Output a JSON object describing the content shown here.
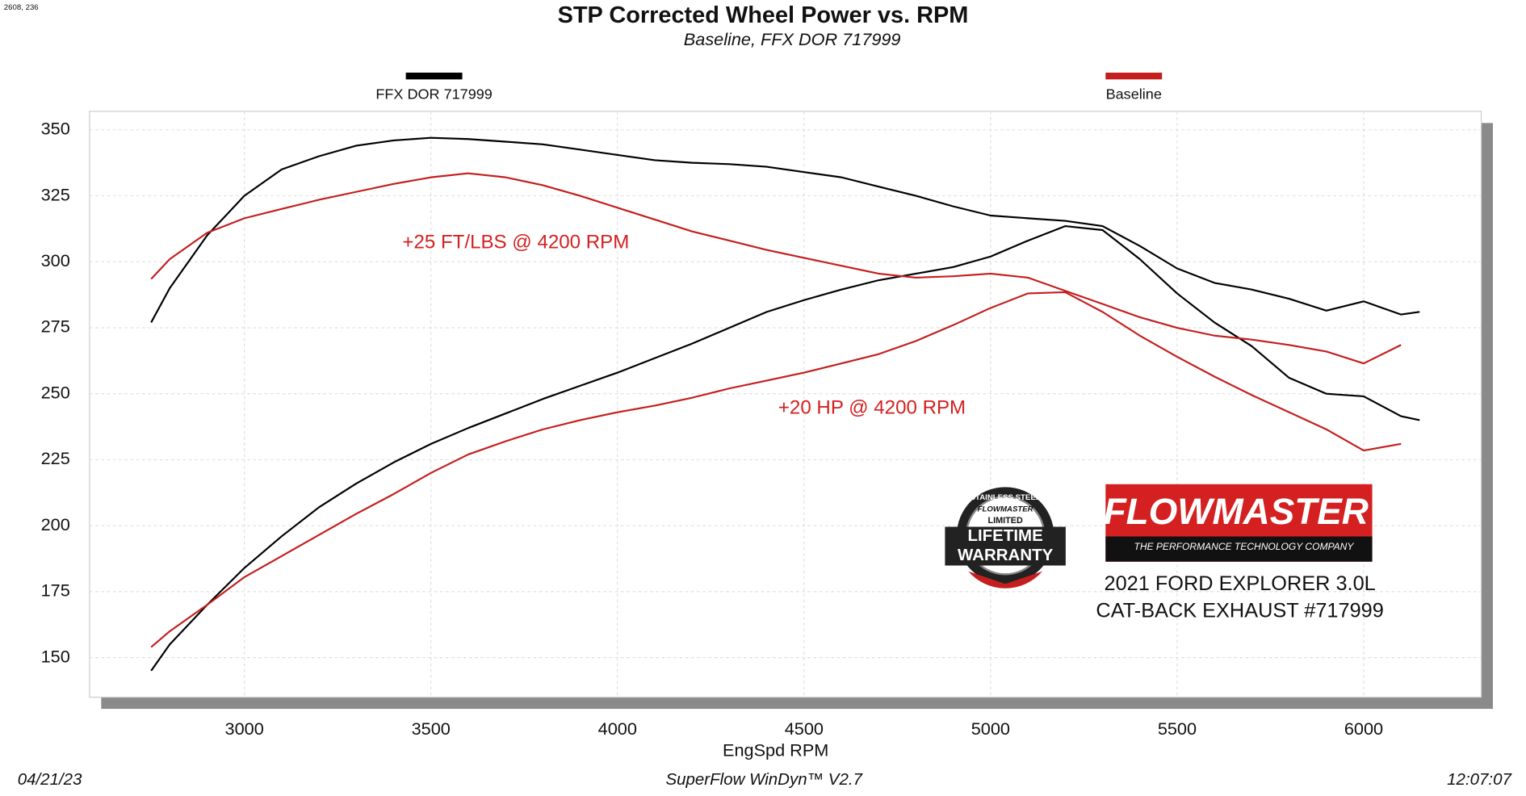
{
  "corner_text": "2608, 236",
  "chart_data": {
    "type": "line",
    "title": "STP Corrected Wheel Power vs. RPM",
    "subtitle": "Baseline, FFX DOR 717999",
    "xlabel": "EngSpd  RPM",
    "annotations": [
      "+25 FT/LBS @ 4200 RPM",
      "+20 HP @ 4200 RPM"
    ],
    "x": [
      2750,
      2800,
      2900,
      3000,
      3100,
      3200,
      3300,
      3400,
      3500,
      3600,
      3700,
      3800,
      3900,
      4000,
      4100,
      4200,
      4300,
      4400,
      4500,
      4600,
      4700,
      4800,
      4900,
      5000,
      5100,
      5200,
      5300,
      5400,
      5500,
      5600,
      5700,
      5800,
      5900,
      6000,
      6100,
      6150
    ],
    "series": [
      {
        "name": "FFX DOR 717999",
        "color": "#000000",
        "torque": [
          277,
          290,
          310,
          325,
          335,
          340,
          344,
          346,
          347,
          346.5,
          345.5,
          344.5,
          342.5,
          340.5,
          338.5,
          337.5,
          337,
          336,
          334,
          332,
          328.5,
          325,
          321,
          317.5,
          316.5,
          315.5,
          313.5,
          306,
          297.5,
          292,
          289.5,
          286,
          281.5,
          285,
          280,
          281
        ],
        "power": [
          145,
          155,
          170,
          184,
          196,
          207,
          216,
          224,
          231,
          237,
          242.5,
          248,
          253,
          258,
          263.5,
          269,
          275,
          281,
          285.5,
          289.5,
          293,
          295.5,
          298,
          302,
          308,
          313.5,
          312,
          301,
          288,
          277,
          268,
          256,
          250,
          249,
          241.5,
          240
        ]
      },
      {
        "name": "Baseline",
        "color": "#c41e1e",
        "torque": [
          293.5,
          301,
          311,
          316.5,
          320,
          323.5,
          326.5,
          329.5,
          332,
          333.5,
          332,
          329,
          325,
          320.5,
          316,
          311.5,
          308,
          304.5,
          301.5,
          298.5,
          295.5,
          294,
          294.5,
          295.5,
          294,
          289,
          284,
          279,
          275,
          272,
          270.5,
          268.5,
          266,
          261.5,
          268.5,
          null
        ],
        "power": [
          154,
          160,
          170,
          180.5,
          188.5,
          196.5,
          204.5,
          212,
          220,
          227,
          232,
          236.5,
          240,
          243,
          245.5,
          248.5,
          252,
          255,
          258,
          261.5,
          265,
          270,
          276,
          282.5,
          288,
          288.5,
          281,
          272,
          264,
          256.5,
          249.5,
          243,
          236.5,
          228.5,
          231,
          null
        ]
      }
    ],
    "xlim": [
      2585,
      6315
    ],
    "ylim": [
      135,
      357
    ],
    "xticks": [
      3000,
      3500,
      4000,
      4500,
      5000,
      5500,
      6000
    ],
    "yticks": [
      150,
      175,
      200,
      225,
      250,
      275,
      300,
      325,
      350
    ],
    "grid": true
  },
  "logos": {
    "flowmaster": "FLOWMASTER",
    "tagline": "THE PERFORMANCE TECHNOLOGY COMPANY",
    "badge": [
      "STAINLESS STEEL",
      "FLOWMASTER",
      "LIMITED",
      "LIFETIME",
      "WARRANTY"
    ]
  },
  "vehicle": [
    "2021 FORD EXPLORER 3.0L",
    "CAT-BACK EXHAUST #717999"
  ],
  "footer": {
    "date": "04/21/23",
    "software": "SuperFlow WinDyn™ V2.7",
    "time": "12:07:07"
  }
}
